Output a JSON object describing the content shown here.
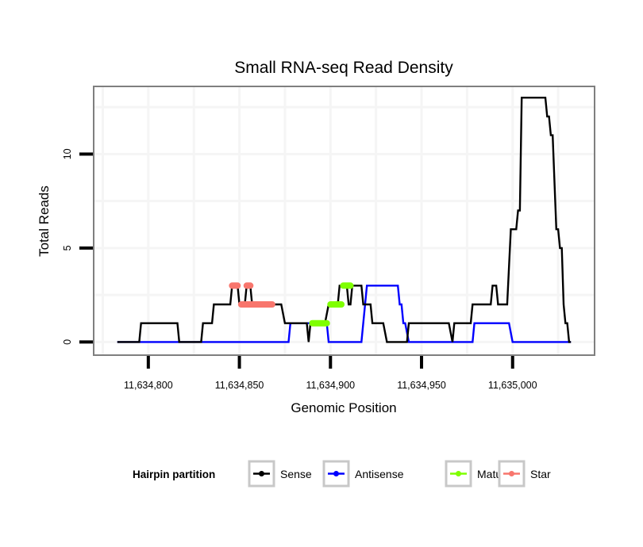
{
  "chart_data": {
    "type": "line",
    "title": "Small RNA-seq Read Density",
    "xlabel": "Genomic Position",
    "ylabel": "Total Reads",
    "xlim": [
      11634770,
      11635045
    ],
    "ylim": [
      -0.7,
      13.6
    ],
    "grid": true,
    "x_ticks": [
      {
        "value": 11634800,
        "label": "11,634,800"
      },
      {
        "value": 11634850,
        "label": "11,634,850"
      },
      {
        "value": 11634900,
        "label": "11,634,900"
      },
      {
        "value": 11634950,
        "label": "11,634,950"
      },
      {
        "value": 11635000,
        "label": "11,635,000"
      }
    ],
    "y_ticks": [
      {
        "value": 0,
        "label": "0"
      },
      {
        "value": 5,
        "label": "5"
      },
      {
        "value": 10,
        "label": "10"
      }
    ],
    "legend": {
      "title": "Hairpin partition",
      "placement": "bottom",
      "entries": [
        "Sense",
        "Antisense",
        "Mature",
        "Star"
      ]
    },
    "series": [
      {
        "name": "Sense",
        "color": "#000000",
        "style": "line",
        "points": [
          [
            11634783,
            0
          ],
          [
            11634795,
            0
          ],
          [
            11634796,
            1
          ],
          [
            11634816,
            1
          ],
          [
            11634817,
            0
          ],
          [
            11634829,
            0
          ],
          [
            11634830,
            1
          ],
          [
            11634835,
            1
          ],
          [
            11634836,
            2
          ],
          [
            11634845,
            2
          ],
          [
            11634846,
            3
          ],
          [
            11634849,
            3
          ],
          [
            11634850,
            2
          ],
          [
            11634853,
            2
          ],
          [
            11634854,
            3
          ],
          [
            11634856,
            3
          ],
          [
            11634857,
            2
          ],
          [
            11634873,
            2
          ],
          [
            11634875,
            1
          ],
          [
            11634887,
            1
          ],
          [
            11634888,
            0
          ],
          [
            11634889,
            1
          ],
          [
            11634897,
            1
          ],
          [
            11634899,
            2
          ],
          [
            11634904,
            2
          ],
          [
            11634905,
            3
          ],
          [
            11634909,
            3
          ],
          [
            11634910,
            2
          ],
          [
            11634911,
            2
          ],
          [
            11634912,
            3
          ],
          [
            11634917,
            3
          ],
          [
            11634918,
            2
          ],
          [
            11634922,
            2
          ],
          [
            11634923,
            1
          ],
          [
            11634929,
            1
          ],
          [
            11634931,
            0
          ],
          [
            11634942,
            0
          ],
          [
            11634943,
            1
          ],
          [
            11634965,
            1
          ],
          [
            11634967,
            0
          ],
          [
            11634968,
            1
          ],
          [
            11634977,
            1
          ],
          [
            11634978,
            2
          ],
          [
            11634988,
            2
          ],
          [
            11634989,
            3
          ],
          [
            11634991,
            3
          ],
          [
            11634992,
            2
          ],
          [
            11634997,
            2
          ],
          [
            11634999,
            6
          ],
          [
            11635002,
            6
          ],
          [
            11635003,
            7
          ],
          [
            11635004,
            7
          ],
          [
            11635005,
            13
          ],
          [
            11635018,
            13
          ],
          [
            11635019,
            12
          ],
          [
            11635020,
            12
          ],
          [
            11635021,
            11
          ],
          [
            11635022,
            11
          ],
          [
            11635024,
            6
          ],
          [
            11635025,
            6
          ],
          [
            11635026,
            5
          ],
          [
            11635027,
            5
          ],
          [
            11635028,
            2
          ],
          [
            11635029,
            1
          ],
          [
            11635030,
            1
          ],
          [
            11635031,
            0
          ],
          [
            11635032,
            0
          ]
        ]
      },
      {
        "name": "Antisense",
        "color": "#0000ff",
        "style": "line",
        "points": [
          [
            11634783,
            0
          ],
          [
            11634877,
            0
          ],
          [
            11634878,
            1
          ],
          [
            11634898,
            1
          ],
          [
            11634899,
            0
          ],
          [
            11634917,
            0
          ],
          [
            11634920,
            3
          ],
          [
            11634937,
            3
          ],
          [
            11634938,
            2
          ],
          [
            11634939,
            2
          ],
          [
            11634940,
            1
          ],
          [
            11634941,
            1
          ],
          [
            11634943,
            0
          ],
          [
            11634978,
            0
          ],
          [
            11634979,
            1
          ],
          [
            11634998,
            1
          ],
          [
            11635000,
            0
          ],
          [
            11635032,
            0
          ]
        ]
      },
      {
        "name": "Mature",
        "color": "#7fff00",
        "style": "thick",
        "segments": [
          {
            "x": [
              11634890,
              11634898
            ],
            "y": 1
          },
          {
            "x": [
              11634900,
              11634906
            ],
            "y": 2
          },
          {
            "x": [
              11634907,
              11634911
            ],
            "y": 3
          }
        ]
      },
      {
        "name": "Star",
        "color": "#f8766d",
        "style": "thick",
        "segments": [
          {
            "x": [
              11634846,
              11634849
            ],
            "y": 3
          },
          {
            "x": [
              11634851,
              11634868
            ],
            "y": 2
          },
          {
            "x": [
              11634854,
              11634856
            ],
            "y": 3
          }
        ]
      }
    ]
  }
}
